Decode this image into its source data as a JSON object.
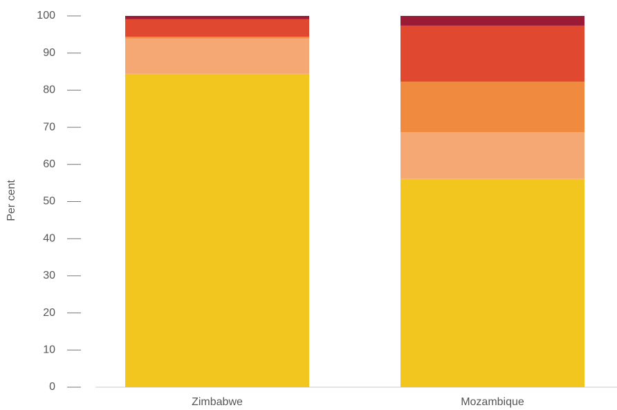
{
  "chart_data": {
    "type": "stacked_bar",
    "y_label": "Per cent",
    "categories": [
      "Zimbabwe",
      "Mozambique"
    ],
    "series": [
      {
        "color": "#f2c61f",
        "values": [
          84.4,
          56.1
        ]
      },
      {
        "color": "#f5a873",
        "values": [
          9.5,
          12.6
        ]
      },
      {
        "color": "#f08a3e",
        "values": [
          0.5,
          13.6
        ]
      },
      {
        "color": "#e0492f",
        "values": [
          4.7,
          15.1
        ]
      },
      {
        "color": "#9b1a35",
        "values": [
          0.9,
          2.6
        ]
      }
    ],
    "ylim": [
      0,
      100
    ],
    "yticks": [
      0,
      10,
      20,
      30,
      40,
      50,
      60,
      70,
      80,
      90,
      100
    ]
  }
}
